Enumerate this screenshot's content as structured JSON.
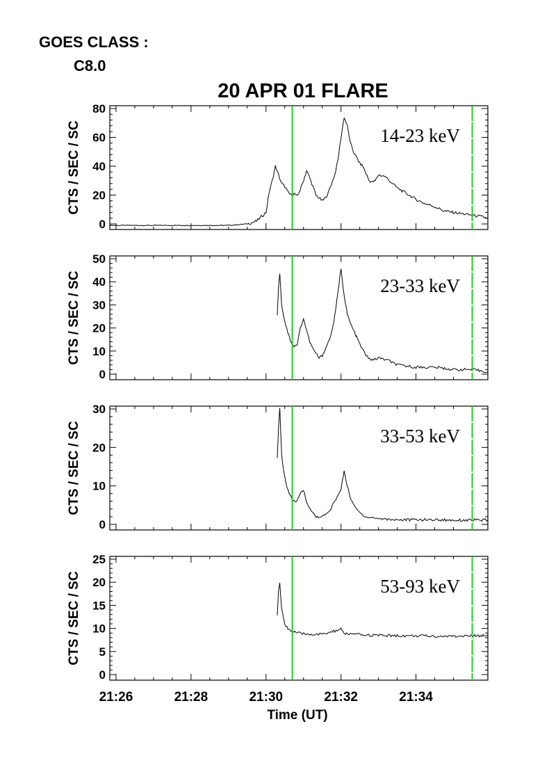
{
  "goes": {
    "line1": "GOES CLASS :",
    "line2": "C8.0"
  },
  "title": "20 APR 01 FLARE",
  "xlabel": "Time (UT)",
  "ylabel": "CTS / SEC / SC",
  "x_ticks": [
    "21:26",
    "21:28",
    "21:30",
    "21:32",
    "21:34"
  ],
  "colors": {
    "trace": "#000000",
    "marker": "#22cc22"
  },
  "chart_data": [
    {
      "type": "line",
      "band": "14-23 keV",
      "ylim": [
        0,
        80
      ],
      "yticks": [
        0,
        20,
        40,
        60,
        80
      ],
      "markers_x": [
        "21:30:42",
        "21:35:30"
      ],
      "series": [
        {
          "x": [
            "21:25:50",
            "21:26:30",
            "21:27:30",
            "21:28:30",
            "21:29:00",
            "21:29:30",
            "21:29:45",
            "21:30:00",
            "21:30:05",
            "21:30:10",
            "21:30:15",
            "21:30:20",
            "21:30:25",
            "21:30:30",
            "21:30:35",
            "21:30:40",
            "21:30:45",
            "21:30:50",
            "21:30:55",
            "21:31:00",
            "21:31:05",
            "21:31:10",
            "21:31:15",
            "21:31:20",
            "21:31:25",
            "21:31:30",
            "21:31:35",
            "21:31:40",
            "21:31:45",
            "21:31:50",
            "21:31:55",
            "21:32:00",
            "21:32:05",
            "21:32:10",
            "21:32:15",
            "21:32:20",
            "21:32:25",
            "21:32:30",
            "21:32:35",
            "21:32:40",
            "21:32:45",
            "21:32:50",
            "21:32:55",
            "21:33:00",
            "21:33:10",
            "21:33:20",
            "21:33:30",
            "21:33:45",
            "21:34:00",
            "21:34:15",
            "21:34:30",
            "21:34:45",
            "21:35:00",
            "21:35:15",
            "21:35:30",
            "21:35:45",
            "21:35:55"
          ],
          "y": [
            -1,
            -1,
            -1,
            -1,
            -1,
            0,
            2,
            8,
            22,
            30,
            40,
            34,
            28,
            26,
            22,
            20,
            21,
            19,
            24,
            30,
            37,
            32,
            26,
            20,
            18,
            16,
            18,
            22,
            28,
            34,
            44,
            60,
            74,
            68,
            56,
            50,
            46,
            42,
            40,
            35,
            30,
            29,
            30,
            34,
            33,
            29,
            25,
            21,
            17,
            14,
            12,
            9,
            8,
            7,
            6,
            5,
            4
          ]
        }
      ]
    },
    {
      "type": "line",
      "band": "23-33 keV",
      "ylim": [
        0,
        50
      ],
      "yticks": [
        0,
        10,
        20,
        30,
        40,
        50
      ],
      "markers_x": [
        "21:30:42",
        "21:35:30"
      ],
      "series": [
        {
          "x": [
            "21:30:18",
            "21:30:20",
            "21:30:22",
            "21:30:25",
            "21:30:30",
            "21:30:35",
            "21:30:40",
            "21:30:45",
            "21:30:50",
            "21:30:55",
            "21:31:00",
            "21:31:05",
            "21:31:10",
            "21:31:15",
            "21:31:20",
            "21:31:25",
            "21:31:30",
            "21:31:35",
            "21:31:40",
            "21:31:45",
            "21:31:50",
            "21:31:55",
            "21:32:00",
            "21:32:05",
            "21:32:10",
            "21:32:15",
            "21:32:20",
            "21:32:25",
            "21:32:30",
            "21:32:40",
            "21:32:50",
            "21:33:00",
            "21:33:15",
            "21:33:30",
            "21:34:00",
            "21:34:30",
            "21:35:00",
            "21:35:30",
            "21:35:55"
          ],
          "y": [
            25,
            38,
            44,
            30,
            23,
            18,
            14,
            12,
            13,
            20,
            24,
            19,
            14,
            11,
            9,
            7,
            8,
            11,
            14,
            18,
            25,
            35,
            46,
            34,
            26,
            22,
            19,
            16,
            13,
            8,
            6,
            7,
            6,
            4,
            3,
            3,
            2,
            2,
            1
          ]
        }
      ]
    },
    {
      "type": "line",
      "band": "33-53 keV",
      "ylim": [
        0,
        30
      ],
      "yticks": [
        0,
        10,
        20,
        30
      ],
      "markers_x": [
        "21:30:42",
        "21:35:30"
      ],
      "series": [
        {
          "x": [
            "21:30:18",
            "21:30:20",
            "21:30:22",
            "21:30:25",
            "21:30:30",
            "21:30:35",
            "21:30:40",
            "21:30:45",
            "21:30:50",
            "21:30:55",
            "21:31:00",
            "21:31:05",
            "21:31:10",
            "21:31:15",
            "21:31:20",
            "21:31:30",
            "21:31:40",
            "21:31:50",
            "21:32:00",
            "21:32:05",
            "21:32:10",
            "21:32:15",
            "21:32:20",
            "21:32:30",
            "21:32:40",
            "21:33:00",
            "21:33:30",
            "21:34:00",
            "21:34:30",
            "21:35:00",
            "21:35:30",
            "21:35:55"
          ],
          "y": [
            17,
            25,
            30,
            18,
            12,
            9,
            7,
            6,
            6,
            8,
            9,
            6,
            4,
            3,
            2,
            2,
            3,
            6,
            9,
            14,
            10,
            7,
            5,
            3,
            2,
            1.5,
            1.2,
            1.2,
            1.2,
            1.1,
            1.1,
            1.1
          ]
        }
      ]
    },
    {
      "type": "line",
      "band": "53-93 keV",
      "ylim": [
        0,
        25
      ],
      "yticks": [
        0,
        5,
        10,
        15,
        20,
        25
      ],
      "markers_x": [
        "21:30:42",
        "21:35:30"
      ],
      "series": [
        {
          "x": [
            "21:30:18",
            "21:30:20",
            "21:30:22",
            "21:30:25",
            "21:30:30",
            "21:30:35",
            "21:30:40",
            "21:30:50",
            "21:31:00",
            "21:31:30",
            "21:32:00",
            "21:32:05",
            "21:32:30",
            "21:33:00",
            "21:33:30",
            "21:34:00",
            "21:34:30",
            "21:35:00",
            "21:35:30",
            "21:35:55"
          ],
          "y": [
            13,
            18,
            20,
            14,
            11,
            10,
            9.5,
            9,
            8.8,
            8.7,
            9.8,
            8.9,
            8.6,
            8.5,
            8.4,
            8.4,
            8.3,
            8.3,
            8.4,
            8.5
          ]
        }
      ]
    }
  ]
}
